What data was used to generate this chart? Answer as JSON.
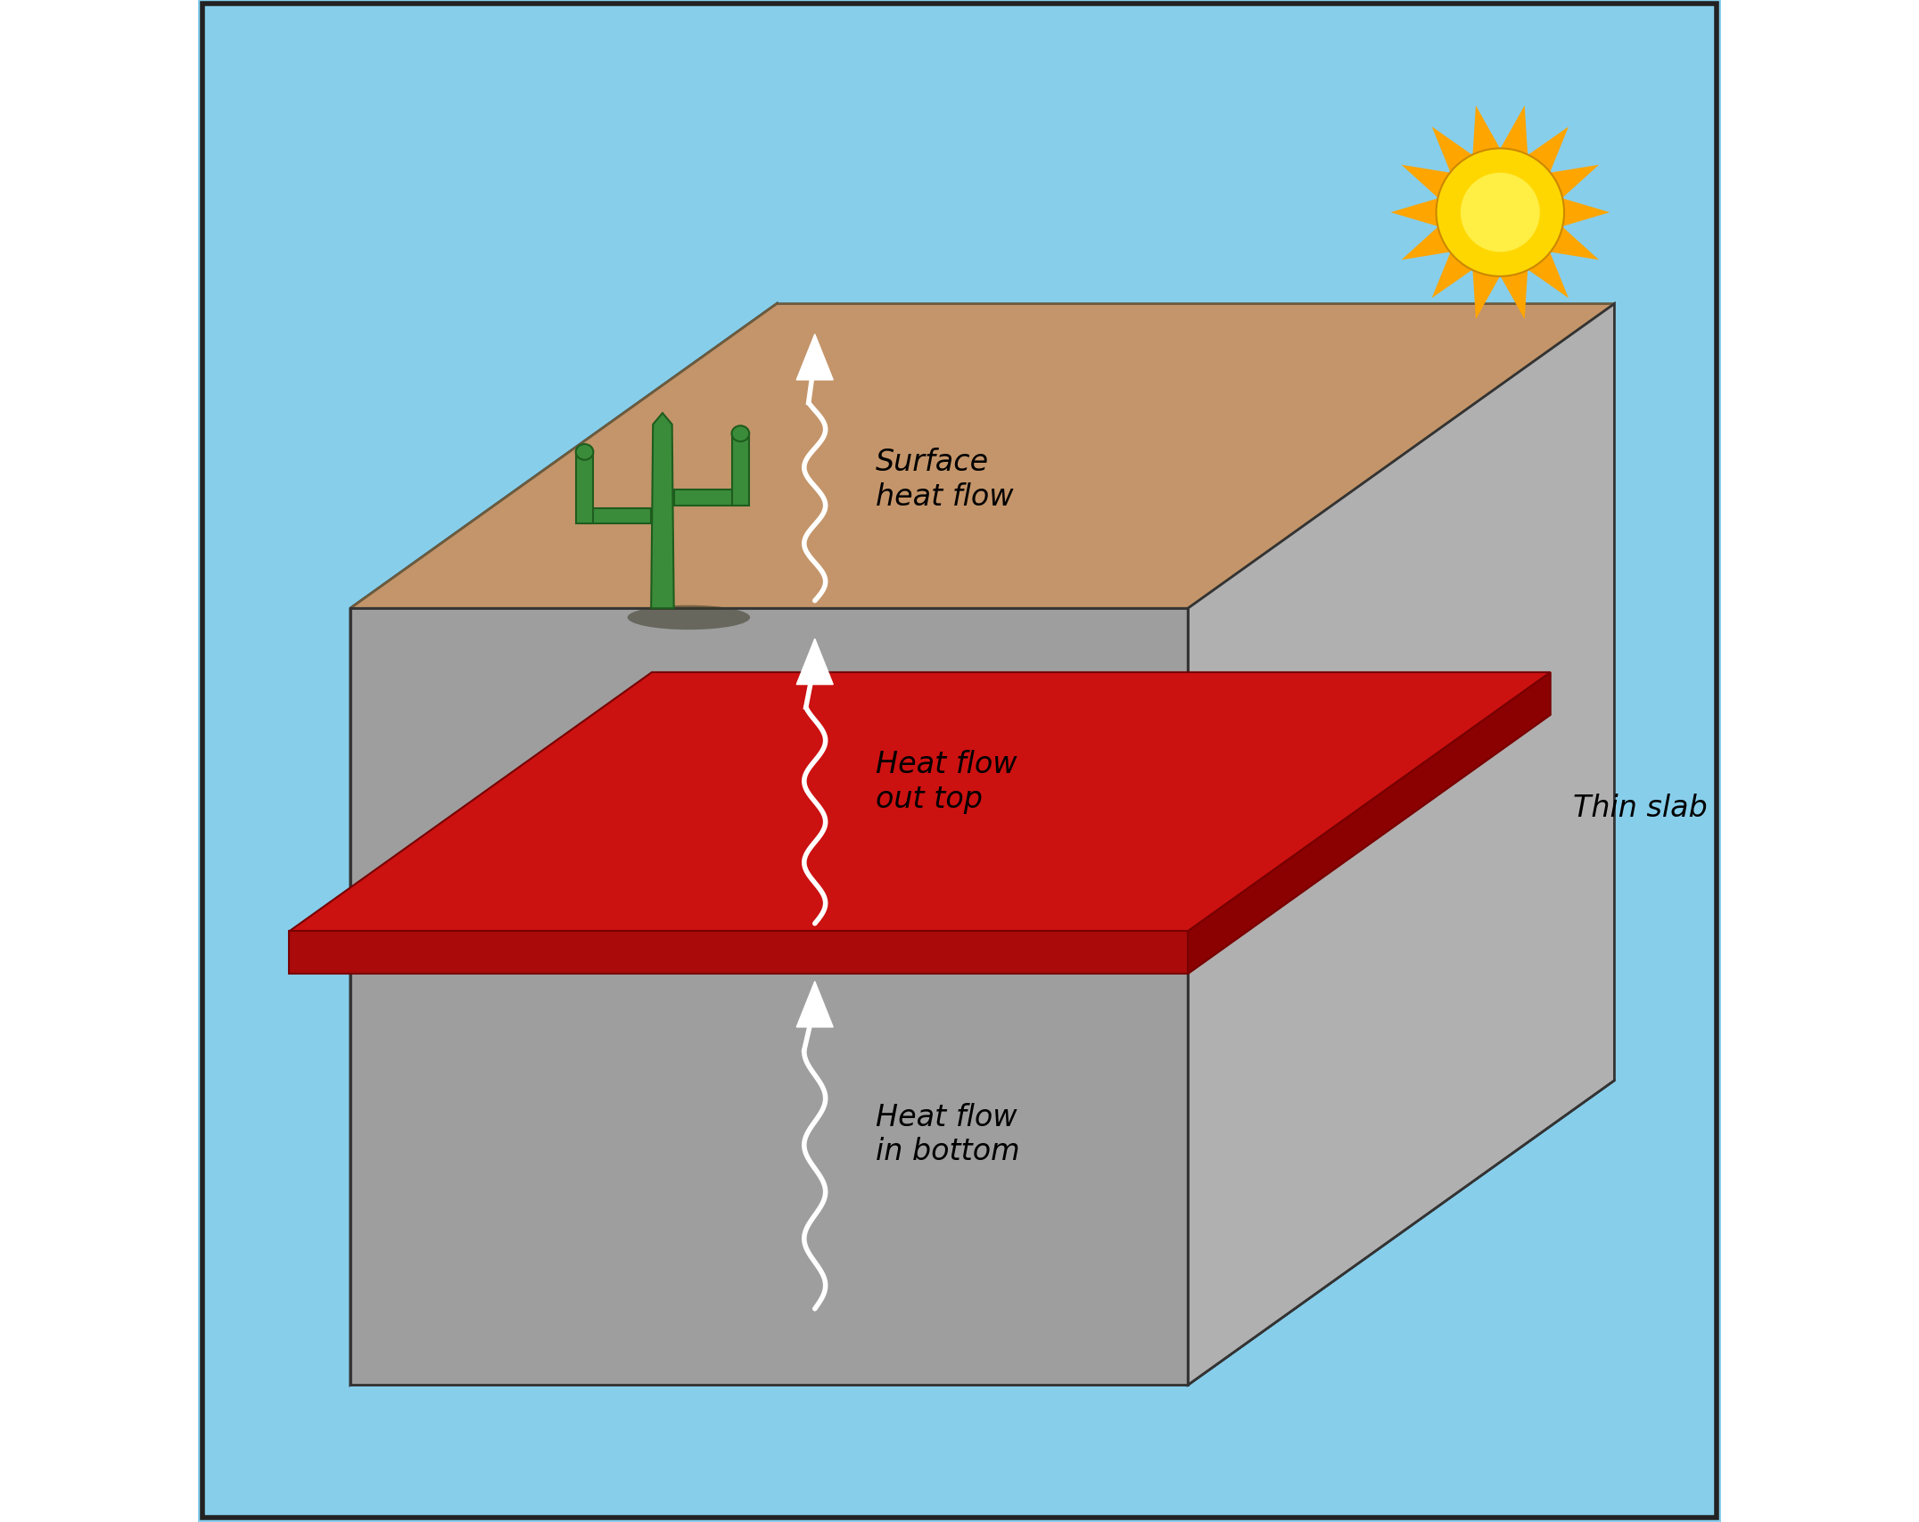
{
  "figsize": [
    21.52,
    17.08
  ],
  "dpi": 100,
  "bg_color": "#ffffff",
  "sky_color": "#87CEEB",
  "ground_color": "#C4956A",
  "rock_front_color": "#9E9E9E",
  "rock_left_color": "#ABABAB",
  "rock_right_color": "#B0B0B0",
  "rock_floor_color": "#C8C8C8",
  "slab_top_color": "#CC1111",
  "slab_front_color": "#AA0A0A",
  "slab_side_color": "#8B0000",
  "sun_body_color": "#FFD700",
  "sun_inner_color": "#FFEE44",
  "sun_ray_color": "#FFA500",
  "text_color": "#000000",
  "white_color": "#FFFFFF",
  "edge_color": "#333333",
  "ground_edge_color": "#6B5B3E",
  "labels": {
    "surface_heat_flow": "Surface\nheat flow",
    "heat_flow_out_top": "Heat flow\nout top",
    "heat_flow_in_bottom": "Heat flow\nin bottom",
    "thin_slab": "Thin slab"
  },
  "font_size": 24
}
